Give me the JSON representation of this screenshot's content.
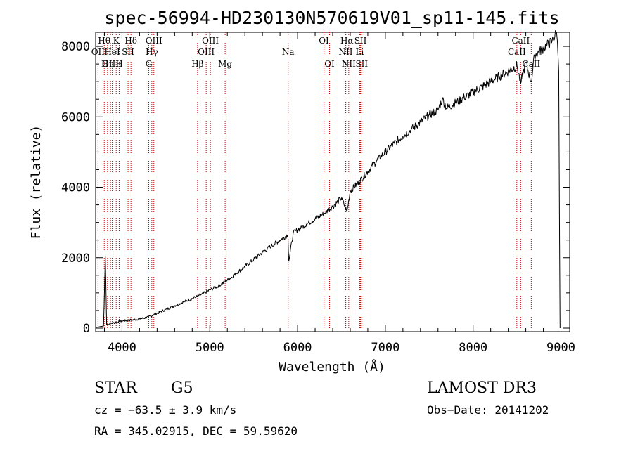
{
  "chart_data": {
    "type": "line",
    "title": "spec-56994-HD230130N570619V01_sp11-145.fits",
    "xlabel": "Wavelength (Å)",
    "ylabel": "Flux (relative)",
    "xlim": [
      3700,
      9100
    ],
    "ylim": [
      -100,
      8400
    ],
    "xticks": [
      4000,
      5000,
      6000,
      7000,
      8000,
      9000
    ],
    "yticks": [
      0,
      2000,
      4000,
      6000,
      8000
    ],
    "series": [
      {
        "name": "spectrum",
        "x": [
          3700,
          3790,
          3810,
          3825,
          3900,
          4000,
          4100,
          4200,
          4300,
          4400,
          4500,
          4600,
          4700,
          4800,
          4900,
          5000,
          5100,
          5200,
          5300,
          5400,
          5500,
          5600,
          5700,
          5800,
          5890,
          5900,
          5950,
          6000,
          6100,
          6200,
          6300,
          6400,
          6500,
          6563,
          6600,
          6700,
          6800,
          6900,
          7000,
          7100,
          7200,
          7300,
          7400,
          7500,
          7600,
          7650,
          7700,
          7800,
          7900,
          8000,
          8100,
          8200,
          8300,
          8400,
          8500,
          8542,
          8600,
          8662,
          8700,
          8800,
          8900,
          8950,
          8960,
          8975,
          8990
        ],
        "y": [
          20,
          60,
          2050,
          100,
          150,
          200,
          230,
          260,
          310,
          420,
          530,
          640,
          740,
          840,
          950,
          1080,
          1200,
          1360,
          1550,
          1750,
          1950,
          2150,
          2330,
          2500,
          2650,
          1900,
          2700,
          2790,
          2950,
          3100,
          3250,
          3450,
          3700,
          3300,
          3900,
          4150,
          4450,
          4750,
          5000,
          5250,
          5450,
          5650,
          5850,
          6050,
          6200,
          6500,
          6250,
          6400,
          6550,
          6700,
          6850,
          7000,
          7150,
          7300,
          7450,
          6950,
          7550,
          7000,
          7750,
          7950,
          8150,
          8400,
          8150,
          7300,
          0
        ]
      }
    ],
    "lines": [
      {
        "label": "Hθ",
        "x": 3798,
        "row": 1
      },
      {
        "label": "OII",
        "x": 3727,
        "row": 2
      },
      {
        "label": "OIII",
        "x": 3869,
        "row": 3
      },
      {
        "label": "Hη",
        "x": 3835,
        "row": 3
      },
      {
        "label": "K",
        "x": 3934,
        "row": 1
      },
      {
        "label": "HeI",
        "x": 3889,
        "row": 2
      },
      {
        "label": "H",
        "x": 3968,
        "row": 3
      },
      {
        "label": "SII",
        "x": 4069,
        "row": 2
      },
      {
        "label": "Hδ",
        "x": 4102,
        "row": 1
      },
      {
        "label": "OIII",
        "x": 4363,
        "row": 1
      },
      {
        "label": "Hγ",
        "x": 4340,
        "row": 2
      },
      {
        "label": "G",
        "x": 4305,
        "row": 3
      },
      {
        "label": "Hβ",
        "x": 4861,
        "row": 3
      },
      {
        "label": "OIII",
        "x": 4959,
        "row": 2
      },
      {
        "label": "OIII",
        "x": 5007,
        "row": 1
      },
      {
        "label": "Mg",
        "x": 5175,
        "row": 3
      },
      {
        "label": "Na",
        "x": 5893,
        "row": 2
      },
      {
        "label": "OI",
        "x": 6300,
        "row": 1
      },
      {
        "label": "OI",
        "x": 6364,
        "row": 3
      },
      {
        "label": "NII",
        "x": 6548,
        "row": 2
      },
      {
        "label": "Hα",
        "x": 6563,
        "row": 1
      },
      {
        "label": "NII",
        "x": 6583,
        "row": 3
      },
      {
        "label": "SII",
        "x": 6717,
        "row": 1
      },
      {
        "label": "SII",
        "x": 6731,
        "row": 3
      },
      {
        "label": "Li",
        "x": 6708,
        "row": 2
      },
      {
        "label": "CaII",
        "x": 8498,
        "row": 2
      },
      {
        "label": "CaII",
        "x": 8542,
        "row": 1
      },
      {
        "label": "CaII",
        "x": 8662,
        "row": 3
      }
    ]
  },
  "info": {
    "object_type": "STAR",
    "subclass": "G5",
    "survey": "LAMOST DR3",
    "cz": "cz = −63.5 ± 3.9 km/s",
    "obs_date": "Obs−Date: 20141202",
    "coords": "RA = 345.02915, DEC =  59.59620"
  }
}
